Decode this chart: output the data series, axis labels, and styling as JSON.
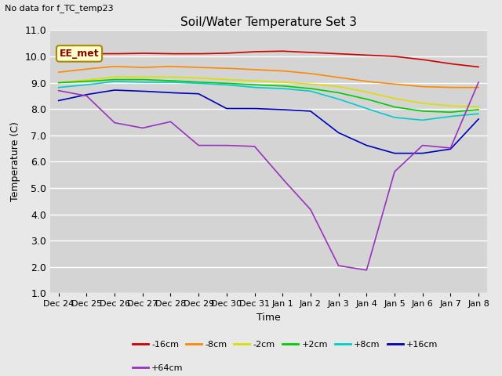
{
  "title": "Soil/Water Temperature Set 3",
  "no_data_label": "No data for f_TC_temp23",
  "legend_box_label": "EE_met",
  "xlabel": "Time",
  "ylabel": "Temperature (C)",
  "ylim": [
    1.0,
    11.0
  ],
  "yticks": [
    1.0,
    2.0,
    3.0,
    4.0,
    5.0,
    6.0,
    7.0,
    8.0,
    9.0,
    10.0,
    11.0
  ],
  "x_labels": [
    "Dec 24",
    "Dec 25",
    "Dec 26",
    "Dec 27",
    "Dec 28",
    "Dec 29",
    "Dec 30",
    "Dec 31",
    "Jan 1",
    "Jan 2",
    "Jan 3",
    "Jan 4",
    "Jan 5",
    "Jan 6",
    "Jan 7",
    "Jan 8"
  ],
  "series": {
    "-16cm": {
      "color": "#cc0000",
      "data": [
        10.1,
        10.1,
        10.1,
        10.12,
        10.1,
        10.1,
        10.12,
        10.18,
        10.2,
        10.15,
        10.1,
        10.05,
        10.0,
        9.88,
        9.72,
        9.6
      ]
    },
    "-8cm": {
      "color": "#ff8800",
      "data": [
        9.4,
        9.52,
        9.62,
        9.58,
        9.62,
        9.58,
        9.55,
        9.5,
        9.45,
        9.35,
        9.2,
        9.05,
        8.95,
        8.85,
        8.82,
        8.82
      ]
    },
    "-2cm": {
      "color": "#dddd00",
      "data": [
        9.0,
        9.1,
        9.22,
        9.22,
        9.22,
        9.18,
        9.12,
        9.08,
        9.02,
        8.95,
        8.85,
        8.65,
        8.4,
        8.22,
        8.12,
        8.08
      ]
    },
    "+2cm": {
      "color": "#00cc00",
      "data": [
        9.0,
        9.05,
        9.12,
        9.12,
        9.08,
        9.02,
        8.98,
        8.92,
        8.88,
        8.78,
        8.62,
        8.38,
        8.08,
        7.92,
        7.88,
        7.98
      ]
    },
    "+8cm": {
      "color": "#00cccc",
      "data": [
        8.82,
        8.92,
        9.05,
        9.02,
        9.02,
        8.98,
        8.92,
        8.82,
        8.78,
        8.68,
        8.38,
        8.02,
        7.68,
        7.58,
        7.72,
        7.82
      ]
    },
    "+16cm": {
      "color": "#0000bb",
      "data": [
        8.32,
        8.55,
        8.72,
        8.68,
        8.62,
        8.58,
        8.02,
        8.02,
        7.98,
        7.92,
        7.1,
        6.62,
        6.32,
        6.32,
        6.48,
        7.62
      ]
    },
    "+64cm": {
      "color": "#9933bb",
      "data": [
        8.7,
        8.5,
        7.48,
        7.28,
        7.52,
        6.62,
        6.62,
        6.58,
        5.35,
        4.18,
        2.05,
        1.88,
        5.62,
        6.62,
        6.52,
        9.02
      ]
    }
  },
  "background_color": "#e8e8e8",
  "plot_bg_color": "#d4d4d4",
  "grid_color": "#ffffff",
  "series_order": [
    "-16cm",
    "-8cm",
    "-2cm",
    "+2cm",
    "+8cm",
    "+16cm",
    "+64cm"
  ],
  "legend_row1": [
    "-16cm",
    "-8cm",
    "-2cm",
    "+2cm",
    "+8cm",
    "+16cm"
  ],
  "legend_row2": [
    "+64cm"
  ]
}
